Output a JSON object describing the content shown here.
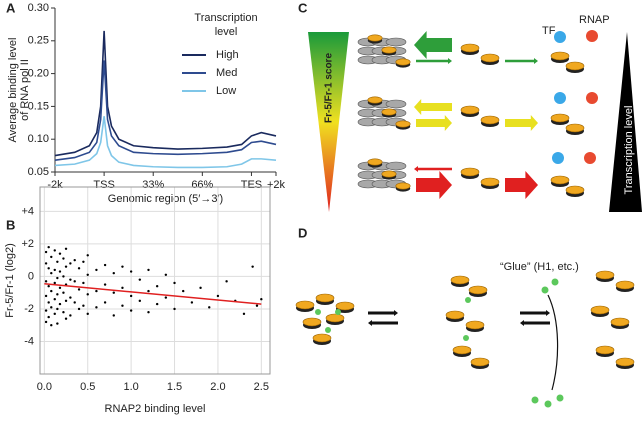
{
  "panel_labels": [
    "A",
    "B",
    "C",
    "D"
  ],
  "chart_data": [
    {
      "type": "line",
      "ylabel": [
        "Average binding level",
        "of RNA pol II"
      ],
      "xlabel": "Genomic region (5′→3′)",
      "legend_title": [
        "Transcription",
        "level"
      ],
      "legend": "upper right",
      "xlim": [
        0,
        4.5
      ],
      "xticks": [
        {
          "value": 0,
          "label": "-2k"
        },
        {
          "value": 1,
          "label": "TSS"
        },
        {
          "value": 2,
          "label": "33%"
        },
        {
          "value": 3,
          "label": "66%"
        },
        {
          "value": 4,
          "label": "TES"
        },
        {
          "value": 4.5,
          "label": "+2k"
        }
      ],
      "ylim": [
        0.05,
        0.3
      ],
      "yticks": [
        0.05,
        {
          "value": 0.1,
          "label": "0.10"
        },
        0.15,
        {
          "value": 0.2,
          "label": "0.20"
        },
        0.25,
        {
          "value": 0.3,
          "label": "0.30"
        }
      ],
      "x": [
        0,
        0.4,
        0.7,
        0.85,
        0.93,
        1.0,
        1.07,
        1.15,
        1.3,
        1.6,
        2.0,
        2.5,
        3.0,
        3.5,
        3.8,
        4.0,
        4.2,
        4.5
      ],
      "series": [
        {
          "name": "High",
          "color": "#1a2a5e",
          "values": [
            0.075,
            0.08,
            0.09,
            0.11,
            0.15,
            0.265,
            0.15,
            0.12,
            0.1,
            0.09,
            0.087,
            0.085,
            0.086,
            0.088,
            0.092,
            0.105,
            0.11,
            0.105
          ]
        },
        {
          "name": "Med",
          "color": "#2e4b8f",
          "values": [
            0.068,
            0.072,
            0.08,
            0.095,
            0.13,
            0.22,
            0.13,
            0.105,
            0.09,
            0.08,
            0.078,
            0.077,
            0.078,
            0.08,
            0.084,
            0.095,
            0.097,
            0.092
          ]
        },
        {
          "name": "Low",
          "color": "#7fc6e8",
          "values": [
            0.06,
            0.062,
            0.068,
            0.078,
            0.095,
            0.135,
            0.09,
            0.075,
            0.065,
            0.06,
            0.058,
            0.057,
            0.057,
            0.058,
            0.062,
            0.07,
            0.07,
            0.068
          ]
        }
      ]
    },
    {
      "type": "scatter",
      "ylabel": "Fr-5/Fr-1 (log2)",
      "xlabel": "RNAP2 binding level",
      "grid": true,
      "color": "#000000",
      "xlim": [
        -0.05,
        2.6
      ],
      "xticks": [
        {
          "value": 0,
          "label": "0.0"
        },
        0.5,
        {
          "value": 1,
          "label": "1.0"
        },
        1.5,
        {
          "value": 2,
          "label": "2.0"
        },
        2.5
      ],
      "ylim": [
        -6,
        5.5
      ],
      "yticks": [
        {
          "value": 4,
          "label": "+4"
        },
        {
          "value": 2,
          "label": "+2"
        },
        0,
        -2,
        -4
      ],
      "x": [
        0.02,
        0.02,
        0.02,
        0.02,
        0.02,
        0.02,
        0.05,
        0.05,
        0.05,
        0.05,
        0.05,
        0.08,
        0.08,
        0.08,
        0.08,
        0.08,
        0.12,
        0.12,
        0.12,
        0.12,
        0.12,
        0.15,
        0.15,
        0.15,
        0.15,
        0.15,
        0.18,
        0.18,
        0.18,
        0.18,
        0.22,
        0.22,
        0.22,
        0.22,
        0.25,
        0.25,
        0.25,
        0.25,
        0.25,
        0.3,
        0.3,
        0.3,
        0.3,
        0.35,
        0.35,
        0.35,
        0.4,
        0.4,
        0.4,
        0.45,
        0.45,
        0.45,
        0.5,
        0.5,
        0.5,
        0.5,
        0.6,
        0.6,
        0.6,
        0.7,
        0.7,
        0.7,
        0.8,
        0.8,
        0.8,
        0.9,
        0.9,
        0.9,
        1.0,
        1.0,
        1.0,
        1.1,
        1.1,
        1.2,
        1.2,
        1.2,
        1.3,
        1.3,
        1.4,
        1.4,
        1.5,
        1.5,
        1.6,
        1.7,
        1.8,
        1.9,
        2.0,
        2.1,
        2.2,
        2.3,
        2.4,
        2.45,
        2.5
      ],
      "values": [
        1.5,
        0.8,
        -0.3,
        -1.2,
        -2.1,
        -2.8,
        1.8,
        0.5,
        -0.6,
        -1.6,
        -2.5,
        1.2,
        0.2,
        -0.9,
        -1.9,
        -3.0,
        1.6,
        0.4,
        -0.4,
        -1.4,
        -2.3,
        0.9,
        -0.1,
        -1.1,
        -2.0,
        -2.9,
        1.4,
        0.3,
        -0.7,
        -1.7,
        1.1,
        0.0,
        -1.0,
        -2.2,
        1.7,
        0.6,
        -0.5,
        -1.5,
        -2.6,
        0.8,
        -0.2,
        -1.3,
        -2.4,
        1.0,
        -0.3,
        -1.6,
        0.5,
        -0.8,
        -2.0,
        0.9,
        -0.4,
        -1.8,
        1.3,
        0.1,
        -1.1,
        -2.3,
        0.4,
        -0.9,
        -1.9,
        0.7,
        -0.5,
        -1.6,
        0.2,
        -1.0,
        -2.4,
        0.6,
        -0.7,
        -1.8,
        0.3,
        -1.2,
        -2.1,
        -0.2,
        -1.5,
        0.4,
        -0.9,
        -2.2,
        -0.6,
        -1.7,
        0.1,
        -1.3,
        -0.4,
        -2.0,
        -0.9,
        -1.6,
        -0.7,
        -1.9,
        -1.2,
        -0.3,
        -1.5,
        -2.3,
        0.6,
        -1.8,
        -1.4
      ],
      "trendline": {
        "color": "#e02020",
        "x": [
          0,
          2.5
        ],
        "y": [
          -0.45,
          -1.7
        ]
      }
    }
  ],
  "diagram_c": {
    "bar_label": "Fr-5/Fr-1 score",
    "tf": "TF",
    "rnap": "RNAP",
    "triangle_label": "Transcription level"
  },
  "diagram_d": {
    "glue": "“Glue” (H1, etc.)"
  }
}
